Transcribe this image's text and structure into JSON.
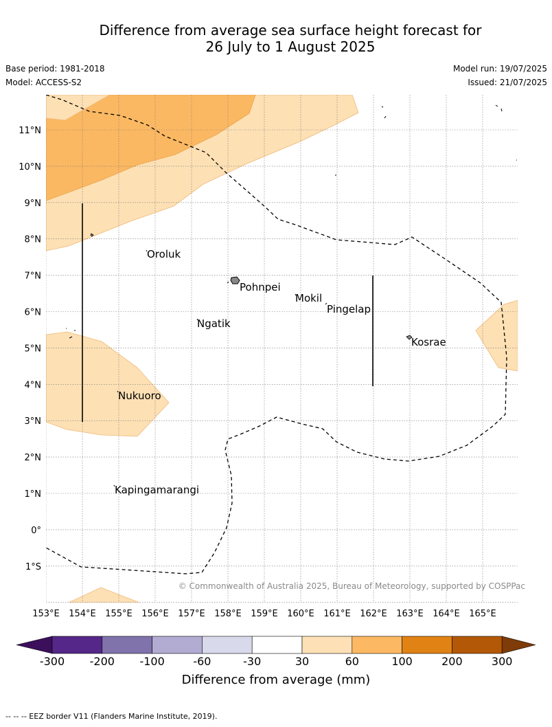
{
  "title": {
    "line1": "Difference from average sea surface height forecast for",
    "line2": "26 July to 1 August 2025"
  },
  "meta": {
    "base_period": "Base period: 1981-2018",
    "model": "Model: ACCESS-S2",
    "model_run": "Model run: 19/07/2025",
    "issued": "Issued: 21/07/2025"
  },
  "map": {
    "lon_ticks": [
      "153°E",
      "154°E",
      "155°E",
      "156°E",
      "157°E",
      "158°E",
      "159°E",
      "160°E",
      "161°E",
      "162°E",
      "163°E",
      "164°E",
      "165°E"
    ],
    "lat_ticks": [
      "11°N",
      "10°N",
      "9°N",
      "8°N",
      "7°N",
      "6°N",
      "5°N",
      "4°N",
      "3°N",
      "2°N",
      "1°N",
      "0°",
      "1°S"
    ],
    "places": [
      "Oroluk",
      "Pohnpei",
      "Mokil",
      "Pingelap",
      "Ngatik",
      "Kosrae",
      "Nukuoro",
      "Kapingamarangi"
    ],
    "copyright": "© Commonwealth of Australia 2025, Bureau of Meteorology, supported by COSPPac",
    "colors": {
      "light_orange": "#fde0b4",
      "mid_orange": "#fbb862",
      "outline": "#f0b878"
    }
  },
  "colorbar": {
    "title": "Difference from average (mm)",
    "labels": [
      "-300",
      "-200",
      "-100",
      "-60",
      "-30",
      "30",
      "60",
      "100",
      "200",
      "300"
    ],
    "colors": [
      "#3b0f5c",
      "#542788",
      "#8073ac",
      "#b2abd2",
      "#d8daeb",
      "#ffffff",
      "#fee0b6",
      "#fdb863",
      "#e08214",
      "#b35806",
      "#7f3b08"
    ]
  },
  "footnote": "--  --  -- EEZ border V11 (Flanders Marine Institute, 2019)."
}
